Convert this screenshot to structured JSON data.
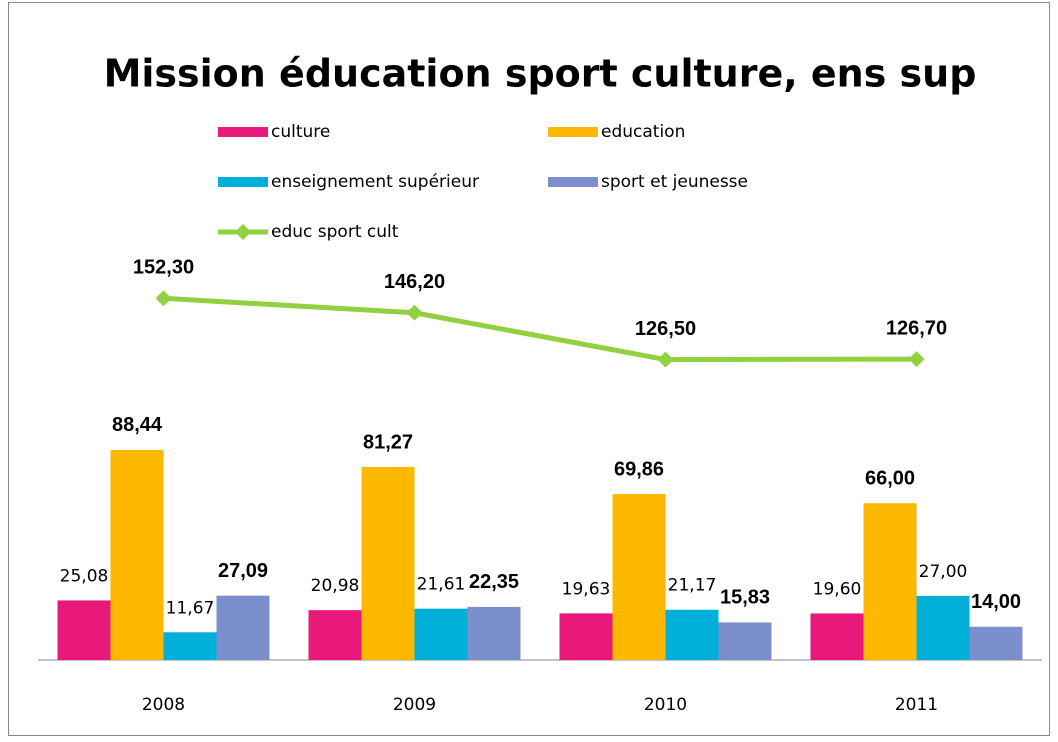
{
  "chart_data": {
    "type": "bar",
    "title": "Mission éducation sport culture, ens sup",
    "categories": [
      "2008",
      "2009",
      "2010",
      "2011"
    ],
    "ylim": [
      0,
      160
    ],
    "series": [
      {
        "name": "culture",
        "color": "#e8197b",
        "values": [
          25.08,
          20.98,
          19.63,
          19.6
        ],
        "value_labels": [
          "25,08",
          "20,98",
          "19,63",
          "19,60"
        ]
      },
      {
        "name": "education",
        "color": "#ffb800",
        "values": [
          88.44,
          81.27,
          69.86,
          66.0
        ],
        "value_labels": [
          "88,44",
          "81,27",
          "69,86",
          "66,00"
        ]
      },
      {
        "name": "enseignement supérieur",
        "color": "#00b0d8",
        "values": [
          11.67,
          21.61,
          21.17,
          27.0
        ],
        "value_labels": [
          "11,67",
          "21,61",
          "21,17",
          "27,00"
        ]
      },
      {
        "name": "sport et jeunesse",
        "color": "#7b8fcc",
        "values": [
          27.09,
          22.35,
          15.83,
          14.0
        ],
        "value_labels": [
          "27,09",
          "22,35",
          "15,83",
          "14,00"
        ]
      },
      {
        "name": "educ sport cult",
        "type": "line",
        "color": "#8fd13f",
        "values": [
          152.3,
          146.2,
          126.5,
          126.7
        ],
        "value_labels": [
          "152,30",
          "146,20",
          "126,50",
          "126,70"
        ]
      }
    ]
  }
}
